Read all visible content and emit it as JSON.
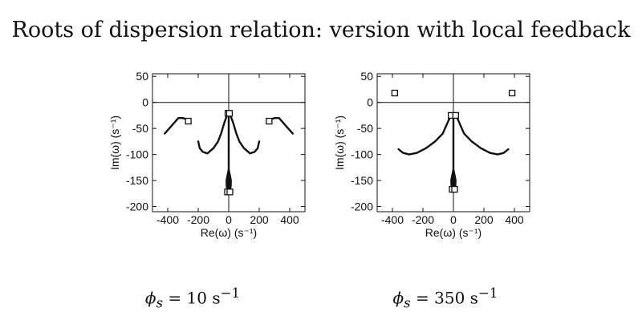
{
  "title": "Roots of dispersion relation: version with local feedback",
  "chart_data": [
    {
      "type": "line",
      "caption_symbol": "ϕ",
      "caption_subscript": "s",
      "caption_value": " = 10 s",
      "caption_exp": "−1",
      "xlabel": "Re(ω) (s⁻¹)",
      "ylabel": "Im(ω) (s⁻¹)",
      "xlim": [
        -500,
        500
      ],
      "ylim": [
        -210,
        55
      ],
      "xticks": [
        -400,
        -200,
        0,
        200,
        400
      ],
      "yticks": [
        50,
        0,
        -50,
        -100,
        -150,
        -200
      ],
      "zero_lines": true,
      "series": [
        {
          "x": [
            -420,
            -390,
            -360,
            -330,
            -300,
            -280,
            -265
          ],
          "y": [
            -60,
            -50,
            -40,
            -30,
            -30,
            -32,
            -36
          ]
        },
        {
          "x": [
            265,
            280,
            300,
            330,
            360,
            390,
            420
          ],
          "y": [
            -36,
            -32,
            -30,
            -30,
            -40,
            -50,
            -60
          ]
        },
        {
          "x": [
            -200,
            -190,
            -170,
            -140,
            -100,
            -70,
            -50,
            -30,
            -15,
            -5
          ],
          "y": [
            -75,
            -88,
            -95,
            -98,
            -88,
            -75,
            -60,
            -40,
            -28,
            -21
          ]
        },
        {
          "x": [
            5,
            15,
            30,
            50,
            70,
            100,
            140,
            170,
            190,
            200
          ],
          "y": [
            -21,
            -28,
            -40,
            -60,
            -75,
            -88,
            -98,
            -95,
            -88,
            -75
          ]
        },
        {
          "x": [
            0,
            0
          ],
          "y": [
            -20,
            -130
          ]
        },
        {
          "x": [
            0,
            -8,
            -14,
            -13,
            -8
          ],
          "y": [
            -130,
            -140,
            -150,
            -160,
            -172
          ]
        },
        {
          "x": [
            0,
            -3,
            -5,
            -5,
            -4
          ],
          "y": [
            -130,
            -140,
            -150,
            -160,
            -172
          ]
        },
        {
          "x": [
            0,
            3,
            5,
            5,
            4
          ],
          "y": [
            -130,
            -140,
            -150,
            -160,
            -172
          ]
        },
        {
          "x": [
            0,
            8,
            14,
            13,
            8
          ],
          "y": [
            -130,
            -140,
            -150,
            -160,
            -172
          ]
        }
      ],
      "markers": [
        {
          "x": -265,
          "y": -36
        },
        {
          "x": 265,
          "y": -36
        },
        {
          "x": -5,
          "y": -21
        },
        {
          "x": 5,
          "y": -21
        },
        {
          "x": -8,
          "y": -172
        },
        {
          "x": 8,
          "y": -172
        }
      ]
    },
    {
      "type": "line",
      "caption_symbol": "ϕ",
      "caption_subscript": "s",
      "caption_value": " = 350 s",
      "caption_exp": "−1",
      "xlabel": "Re(ω) (s⁻¹)",
      "ylabel": "Im(ω) (s⁻¹)",
      "xlim": [
        -500,
        500
      ],
      "ylim": [
        -210,
        55
      ],
      "xticks": [
        -400,
        -200,
        0,
        200,
        400
      ],
      "yticks": [
        50,
        0,
        -50,
        -100,
        -150,
        -200
      ],
      "zero_lines": true,
      "series": [
        {
          "x": [
            -400,
            -395,
            -385
          ],
          "y": [
            16,
            20,
            18
          ]
        },
        {
          "x": [
            385,
            395,
            400
          ],
          "y": [
            18,
            20,
            16
          ]
        },
        {
          "x": [
            -360,
            -330,
            -290,
            -240,
            -180,
            -120,
            -70,
            -40,
            -25,
            -15
          ],
          "y": [
            -90,
            -97,
            -100,
            -97,
            -88,
            -75,
            -60,
            -40,
            -30,
            -25
          ]
        },
        {
          "x": [
            15,
            25,
            40,
            70,
            120,
            180,
            240,
            290,
            330,
            360
          ],
          "y": [
            -25,
            -30,
            -40,
            -60,
            -75,
            -88,
            -97,
            -100,
            -97,
            -90
          ]
        },
        {
          "x": [
            0,
            0
          ],
          "y": [
            -25,
            -130
          ]
        },
        {
          "x": [
            0,
            -8,
            -14,
            -13,
            -8
          ],
          "y": [
            -130,
            -140,
            -150,
            -158,
            -167
          ]
        },
        {
          "x": [
            0,
            -3,
            -5,
            -5,
            -4
          ],
          "y": [
            -130,
            -140,
            -150,
            -158,
            -167
          ]
        },
        {
          "x": [
            0,
            3,
            5,
            5,
            4
          ],
          "y": [
            -130,
            -140,
            -150,
            -158,
            -167
          ]
        },
        {
          "x": [
            0,
            8,
            14,
            13,
            8
          ],
          "y": [
            -130,
            -140,
            -150,
            -158,
            -167
          ]
        }
      ],
      "markers": [
        {
          "x": -385,
          "y": 18
        },
        {
          "x": 385,
          "y": 18
        },
        {
          "x": -15,
          "y": -25
        },
        {
          "x": 15,
          "y": -25
        },
        {
          "x": -8,
          "y": -167
        },
        {
          "x": 8,
          "y": -167
        }
      ]
    }
  ]
}
